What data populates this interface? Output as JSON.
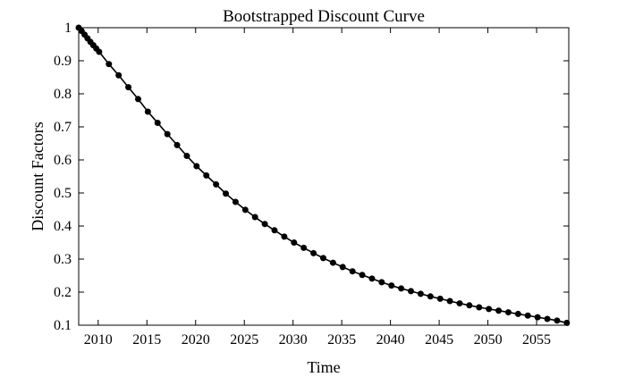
{
  "chart_data": {
    "type": "line",
    "title": "Bootstrapped Discount Curve",
    "xlabel": "Time",
    "ylabel": "Discount Factors",
    "xlim": [
      2008,
      2058.3
    ],
    "ylim": [
      0.1,
      1.0
    ],
    "xticks": [
      2010,
      2015,
      2020,
      2025,
      2030,
      2035,
      2040,
      2045,
      2050,
      2055
    ],
    "yticks": [
      0.1,
      0.2,
      0.3,
      0.4,
      0.5,
      0.6,
      0.7,
      0.8,
      0.9,
      1.0
    ],
    "grid": false,
    "marker": "filled-circle",
    "series": [
      {
        "color": "#000000",
        "x": [
          2008.0,
          2008.3,
          2008.6,
          2008.9,
          2009.2,
          2009.5,
          2009.8,
          2010.1,
          2011.1,
          2012.1,
          2013.1,
          2014.1,
          2015.1,
          2016.1,
          2017.1,
          2018.1,
          2019.1,
          2020.1,
          2021.1,
          2022.1,
          2023.1,
          2024.1,
          2025.1,
          2026.1,
          2027.1,
          2028.1,
          2029.1,
          2030.1,
          2031.1,
          2032.1,
          2033.1,
          2034.1,
          2035.1,
          2036.1,
          2037.1,
          2038.1,
          2039.1,
          2040.1,
          2041.1,
          2042.1,
          2043.1,
          2044.1,
          2045.1,
          2046.1,
          2047.1,
          2048.1,
          2049.1,
          2050.1,
          2051.1,
          2052.1,
          2053.1,
          2054.1,
          2055.1,
          2056.1,
          2057.1,
          2058.1
        ],
        "values": [
          1.0,
          0.99,
          0.979,
          0.968,
          0.957,
          0.947,
          0.937,
          0.927,
          0.89,
          0.856,
          0.82,
          0.784,
          0.746,
          0.712,
          0.678,
          0.645,
          0.612,
          0.581,
          0.553,
          0.526,
          0.498,
          0.473,
          0.449,
          0.427,
          0.406,
          0.387,
          0.368,
          0.35,
          0.334,
          0.318,
          0.303,
          0.289,
          0.276,
          0.263,
          0.252,
          0.241,
          0.23,
          0.22,
          0.211,
          0.203,
          0.195,
          0.187,
          0.18,
          0.173,
          0.166,
          0.16,
          0.154,
          0.149,
          0.144,
          0.139,
          0.134,
          0.129,
          0.124,
          0.119,
          0.114,
          0.107
        ]
      }
    ]
  }
}
